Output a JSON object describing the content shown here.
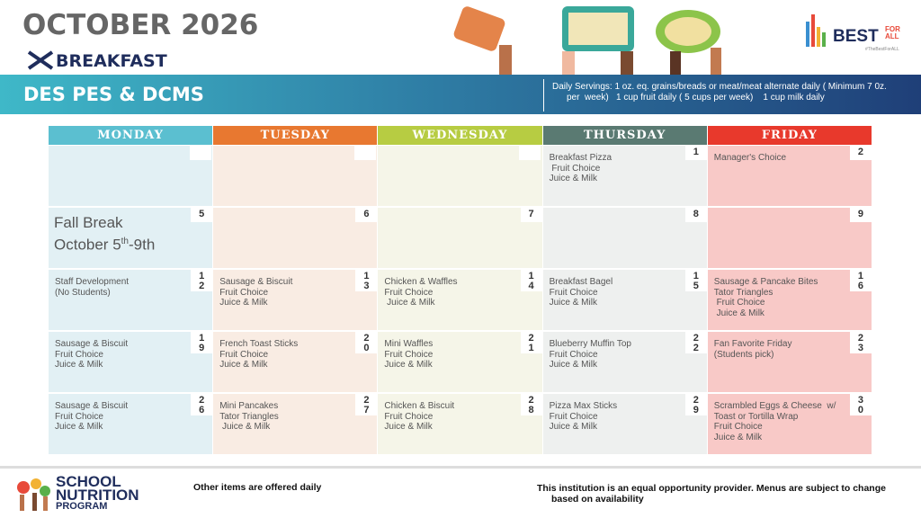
{
  "header": {
    "title": "OCTOBER 2026",
    "meal": "BREAKFAST",
    "schools": "DES PES & DCMS",
    "servings_line1": "Daily Servings: 1 oz. eq. grains/breads or meat/meat alternate daily ( Minimum 7 0z.",
    "servings_line2": "per  week)   1 cup fruit daily ( 5 cups per week)    1 cup milk daily",
    "logo_main": "BEST",
    "logo_for_all": "FOR ALL",
    "logo_tag": "#TheBestForALL"
  },
  "days": [
    "MONDAY",
    "TUESDAY",
    "WEDNESDAY",
    "THURSDAY",
    "FRIDAY"
  ],
  "weeks": [
    [
      {},
      {},
      {},
      {
        "day": "1",
        "items": [
          "Breakfast Pizza",
          " Fruit Choice",
          "Juice & Milk"
        ]
      },
      {
        "day": "2",
        "items": [
          "Manager's Choice"
        ]
      }
    ],
    [
      {
        "day": "5",
        "note": {
          "line1": "Fall Break",
          "line2": "October 5",
          "sup": "th",
          "line3": "-9th"
        }
      },
      {
        "day": "6"
      },
      {
        "day": "7"
      },
      {
        "day": "8"
      },
      {
        "day": "9"
      }
    ],
    [
      {
        "day": "12",
        "items": [
          "Staff Development",
          "(No Students)"
        ]
      },
      {
        "day": "13",
        "items": [
          "Sausage & Biscuit",
          "Fruit Choice",
          "Juice & Milk"
        ]
      },
      {
        "day": "14",
        "items": [
          "Chicken & Waffles",
          "Fruit Choice",
          " Juice & Milk"
        ]
      },
      {
        "day": "15",
        "items": [
          "Breakfast Bagel",
          "Fruit Choice",
          "Juice & Milk"
        ]
      },
      {
        "day": "16",
        "items": [
          "Sausage & Pancake Bites",
          "Tator Triangles",
          " Fruit Choice",
          " Juice & Milk"
        ]
      }
    ],
    [
      {
        "day": "19",
        "items": [
          "Sausage & Biscuit",
          "Fruit Choice",
          "Juice & Milk"
        ]
      },
      {
        "day": "20",
        "items": [
          "French Toast Sticks",
          "Fruit Choice",
          "Juice & Milk"
        ]
      },
      {
        "day": "21",
        "items": [
          "Mini Waffles",
          "Fruit Choice",
          "Juice & Milk"
        ]
      },
      {
        "day": "22",
        "items": [
          "Blueberry Muffin Top",
          "Fruit Choice",
          "Juice & Milk"
        ]
      },
      {
        "day": "23",
        "items": [
          "Fan Favorite Friday",
          "(Students pick)"
        ]
      }
    ],
    [
      {
        "day": "26",
        "items": [
          "Sausage & Biscuit",
          "Fruit Choice",
          "Juice & Milk"
        ]
      },
      {
        "day": "27",
        "items": [
          "Mini Pancakes",
          "Tator Triangles",
          " Juice & Milk"
        ]
      },
      {
        "day": "28",
        "items": [
          "Chicken & Biscuit",
          "Fruit Choice",
          "Juice & Milk"
        ]
      },
      {
        "day": "29",
        "items": [
          "Pizza Max Sticks",
          "Fruit Choice",
          "Juice & Milk"
        ]
      },
      {
        "day": "30",
        "items": [
          "Scrambled Eggs & Cheese  w/",
          "Toast or Tortilla Wrap",
          "Fruit Choice",
          "Juice & Milk"
        ]
      }
    ]
  ],
  "footer": {
    "note": "Other items  are offered daily",
    "disclaimer_line1": "This institution is an equal opportunity provider. Menus are subject to change",
    "disclaimer_line2": "based on availability",
    "program_line1": "SCHOOL",
    "program_line2": "NUTRITION",
    "program_line3": "PROGRAM"
  }
}
